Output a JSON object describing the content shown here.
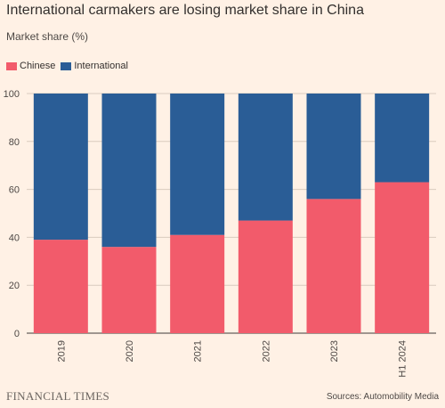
{
  "header": {
    "title": "International carmakers are losing market share in China",
    "subtitle": "Market share (%)"
  },
  "footer": {
    "brand": "FINANCIAL TIMES",
    "source": "Sources: Automobility Media"
  },
  "colors": {
    "chinese": "#f25b6b",
    "international": "#2a5d96",
    "background": "#fff1e5",
    "grid": "#d9cbbe"
  },
  "chart_data": {
    "type": "bar",
    "stacked": true,
    "categories": [
      "2019",
      "2020",
      "2021",
      "2022",
      "2023",
      "H1 2024"
    ],
    "series": [
      {
        "name": "Chinese",
        "values": [
          39,
          36,
          41,
          47,
          56,
          63
        ]
      },
      {
        "name": "International",
        "values": [
          61,
          64,
          59,
          53,
          44,
          37
        ]
      }
    ],
    "ylim": [
      0,
      100
    ],
    "yticks": [
      0,
      20,
      40,
      60,
      80,
      100
    ],
    "ytick_labels": [
      "0",
      "20",
      "40",
      "60",
      "80",
      "100"
    ],
    "grid": true,
    "legend_position": "top-left"
  }
}
